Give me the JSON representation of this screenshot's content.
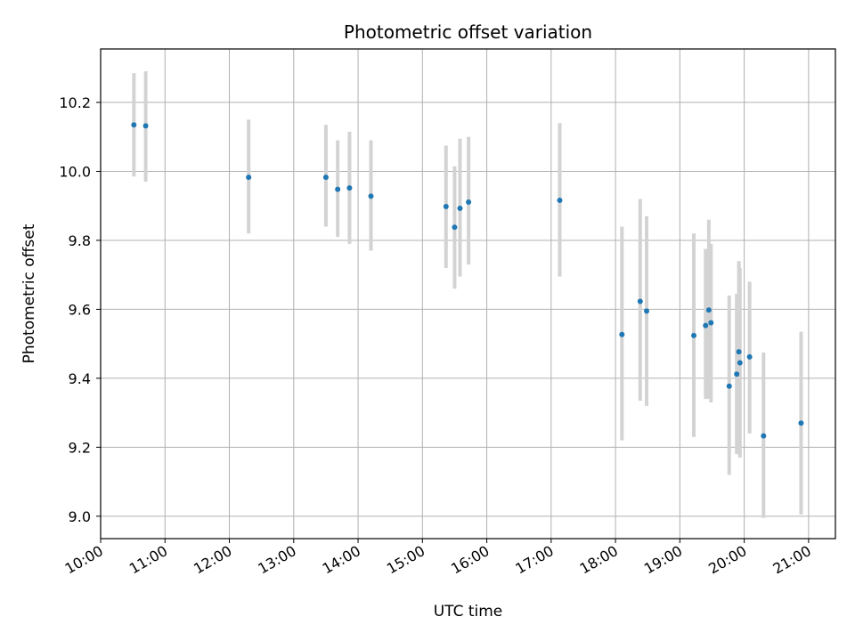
{
  "chart_data": {
    "type": "scatter",
    "title": "Photometric offset variation",
    "xlabel": "UTC time",
    "ylabel": "Photometric offset",
    "xlim": [
      "10:00",
      "21:25"
    ],
    "ylim": [
      8.935,
      10.355
    ],
    "grid": true,
    "x_ticks": [
      "10:00",
      "11:00",
      "12:00",
      "13:00",
      "14:00",
      "15:00",
      "16:00",
      "17:00",
      "18:00",
      "19:00",
      "20:00",
      "21:00"
    ],
    "y_ticks": [
      "9.0",
      "9.2",
      "9.4",
      "9.6",
      "9.8",
      "10.0",
      "10.2"
    ],
    "colors": {
      "point": "#1f77b4",
      "errorbar": "#d3d3d3",
      "grid": "#b0b0b0"
    },
    "points": [
      {
        "x": "10:31",
        "y": 10.135,
        "err_low": 9.985,
        "err_high": 10.285
      },
      {
        "x": "10:42",
        "y": 10.132,
        "err_low": 9.97,
        "err_high": 10.29
      },
      {
        "x": "12:18",
        "y": 9.983,
        "err_low": 9.82,
        "err_high": 10.15
      },
      {
        "x": "13:30",
        "y": 9.983,
        "err_low": 9.84,
        "err_high": 10.135
      },
      {
        "x": "13:41",
        "y": 9.948,
        "err_low": 9.81,
        "err_high": 10.09
      },
      {
        "x": "13:52",
        "y": 9.952,
        "err_low": 9.79,
        "err_high": 10.115
      },
      {
        "x": "14:12",
        "y": 9.928,
        "err_low": 9.77,
        "err_high": 10.09
      },
      {
        "x": "15:22",
        "y": 9.898,
        "err_low": 9.72,
        "err_high": 10.075
      },
      {
        "x": "15:30",
        "y": 9.838,
        "err_low": 9.66,
        "err_high": 10.015
      },
      {
        "x": "15:35",
        "y": 9.893,
        "err_low": 9.695,
        "err_high": 10.095
      },
      {
        "x": "15:43",
        "y": 9.911,
        "err_low": 9.73,
        "err_high": 10.1
      },
      {
        "x": "17:08",
        "y": 9.916,
        "err_low": 9.695,
        "err_high": 10.14
      },
      {
        "x": "18:06",
        "y": 9.527,
        "err_low": 9.22,
        "err_high": 9.84
      },
      {
        "x": "18:23",
        "y": 9.623,
        "err_low": 9.335,
        "err_high": 9.92
      },
      {
        "x": "18:29",
        "y": 9.595,
        "err_low": 9.32,
        "err_high": 9.87
      },
      {
        "x": "19:13",
        "y": 9.524,
        "err_low": 9.23,
        "err_high": 9.82
      },
      {
        "x": "19:24",
        "y": 9.553,
        "err_low": 9.34,
        "err_high": 9.775
      },
      {
        "x": "19:27",
        "y": 9.598,
        "err_low": 9.34,
        "err_high": 9.86
      },
      {
        "x": "19:29",
        "y": 9.561,
        "err_low": 9.33,
        "err_high": 9.79
      },
      {
        "x": "19:46",
        "y": 9.377,
        "err_low": 9.12,
        "err_high": 9.64
      },
      {
        "x": "19:53",
        "y": 9.412,
        "err_low": 9.18,
        "err_high": 9.645
      },
      {
        "x": "19:55",
        "y": 9.477,
        "err_low": 9.2,
        "err_high": 9.74
      },
      {
        "x": "19:56",
        "y": 9.445,
        "err_low": 9.17,
        "err_high": 9.72
      },
      {
        "x": "20:05",
        "y": 9.462,
        "err_low": 9.24,
        "err_high": 9.68
      },
      {
        "x": "20:18",
        "y": 9.233,
        "err_low": 8.995,
        "err_high": 9.475
      },
      {
        "x": "20:53",
        "y": 9.27,
        "err_low": 9.005,
        "err_high": 9.535
      }
    ]
  }
}
